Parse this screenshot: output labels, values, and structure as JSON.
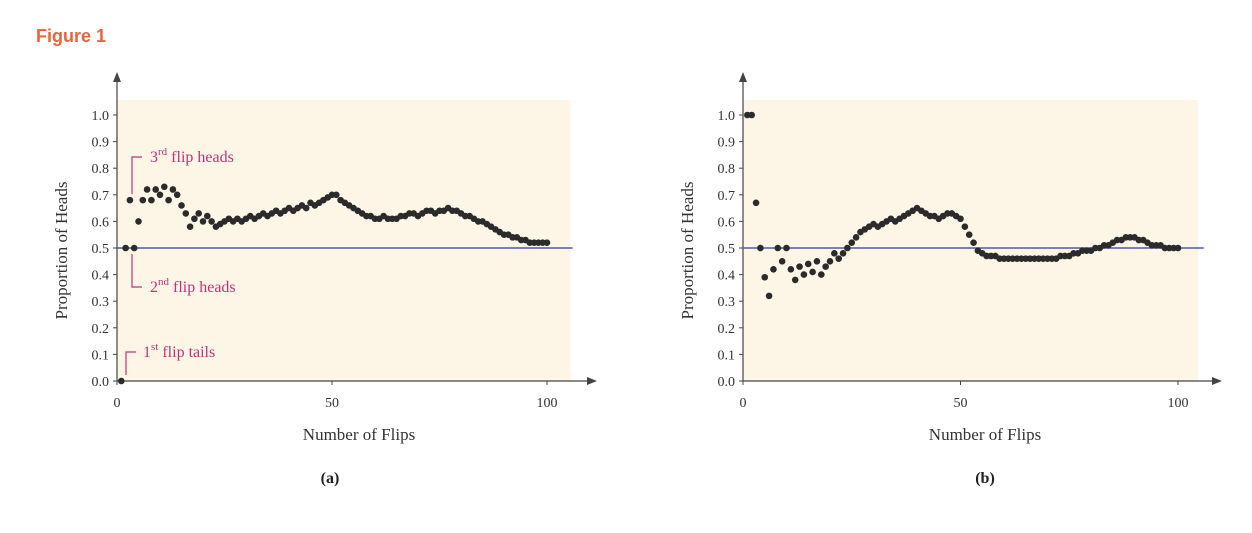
{
  "figure_label": "Figure 1",
  "chart_data": [
    {
      "type": "scatter",
      "panel_label": "(a)",
      "xlabel": "Number of Flips",
      "ylabel": "Proportion of Heads",
      "xlim": [
        0,
        105
      ],
      "ylim": [
        0,
        1.0
      ],
      "xticks": [
        "0",
        "50",
        "100"
      ],
      "yticks": [
        "0.0",
        "0.1",
        "0.2",
        "0.3",
        "0.4",
        "0.5",
        "0.6",
        "0.7",
        "0.8",
        "0.9",
        "1.0"
      ],
      "reference_line": 0.5,
      "colors": {
        "points": "#2b2b2b",
        "reference": "#4a5ab0",
        "background": "#fdf6e6",
        "annotation": "#c0327a"
      },
      "annotations": [
        {
          "text": "3",
          "sup": "rd",
          "rest": " flip heads",
          "x": 3,
          "y": 0.68
        },
        {
          "text": "2",
          "sup": "nd",
          "rest": " flip heads",
          "x": 2,
          "y": 0.5
        },
        {
          "text": "1",
          "sup": "st",
          "rest": " flip tails",
          "x": 1,
          "y": 0.0
        }
      ],
      "series": [
        {
          "x": [
            1,
            2,
            3,
            4,
            5,
            6,
            7,
            8,
            9,
            10,
            11,
            12,
            13,
            14,
            15,
            16,
            17,
            18,
            19,
            20,
            21,
            22,
            23,
            24,
            25,
            26,
            27,
            28,
            29,
            30,
            31,
            32,
            33,
            34,
            35,
            36,
            37,
            38,
            39,
            40,
            41,
            42,
            43,
            44,
            45,
            46,
            47,
            48,
            49,
            50,
            51,
            52,
            53,
            54,
            55,
            56,
            57,
            58,
            59,
            60,
            61,
            62,
            63,
            64,
            65,
            66,
            67,
            68,
            69,
            70,
            71,
            72,
            73,
            74,
            75,
            76,
            77,
            78,
            79,
            80,
            81,
            82,
            83,
            84,
            85,
            86,
            87,
            88,
            89,
            90,
            91,
            92,
            93,
            94,
            95,
            96,
            97,
            98,
            99,
            100
          ],
          "y": [
            0.0,
            0.5,
            0.68,
            0.5,
            0.6,
            0.68,
            0.72,
            0.68,
            0.72,
            0.7,
            0.73,
            0.68,
            0.72,
            0.7,
            0.66,
            0.63,
            0.58,
            0.61,
            0.63,
            0.6,
            0.62,
            0.6,
            0.58,
            0.59,
            0.6,
            0.61,
            0.6,
            0.61,
            0.6,
            0.61,
            0.62,
            0.61,
            0.62,
            0.63,
            0.62,
            0.63,
            0.64,
            0.63,
            0.64,
            0.65,
            0.64,
            0.65,
            0.66,
            0.65,
            0.67,
            0.66,
            0.67,
            0.68,
            0.69,
            0.7,
            0.7,
            0.68,
            0.67,
            0.66,
            0.65,
            0.64,
            0.63,
            0.62,
            0.62,
            0.61,
            0.61,
            0.62,
            0.61,
            0.61,
            0.61,
            0.62,
            0.62,
            0.63,
            0.63,
            0.62,
            0.63,
            0.64,
            0.64,
            0.63,
            0.64,
            0.64,
            0.65,
            0.64,
            0.64,
            0.63,
            0.62,
            0.62,
            0.61,
            0.6,
            0.6,
            0.59,
            0.58,
            0.57,
            0.56,
            0.55,
            0.55,
            0.54,
            0.54,
            0.53,
            0.53,
            0.52,
            0.52,
            0.52,
            0.52,
            0.52
          ]
        }
      ]
    },
    {
      "type": "scatter",
      "panel_label": "(b)",
      "xlabel": "Number of Flips",
      "ylabel": "Proportion of Heads",
      "xlim": [
        0,
        105
      ],
      "ylim": [
        0,
        1.0
      ],
      "xticks": [
        "0",
        "50",
        "100"
      ],
      "yticks": [
        "0.0",
        "0.1",
        "0.2",
        "0.3",
        "0.4",
        "0.5",
        "0.6",
        "0.7",
        "0.8",
        "0.9",
        "1.0"
      ],
      "reference_line": 0.5,
      "colors": {
        "points": "#2b2b2b",
        "reference": "#4a5ab0",
        "background": "#fdf6e6"
      },
      "series": [
        {
          "x": [
            1,
            2,
            3,
            4,
            5,
            6,
            7,
            8,
            9,
            10,
            11,
            12,
            13,
            14,
            15,
            16,
            17,
            18,
            19,
            20,
            21,
            22,
            23,
            24,
            25,
            26,
            27,
            28,
            29,
            30,
            31,
            32,
            33,
            34,
            35,
            36,
            37,
            38,
            39,
            40,
            41,
            42,
            43,
            44,
            45,
            46,
            47,
            48,
            49,
            50,
            51,
            52,
            53,
            54,
            55,
            56,
            57,
            58,
            59,
            60,
            61,
            62,
            63,
            64,
            65,
            66,
            67,
            68,
            69,
            70,
            71,
            72,
            73,
            74,
            75,
            76,
            77,
            78,
            79,
            80,
            81,
            82,
            83,
            84,
            85,
            86,
            87,
            88,
            89,
            90,
            91,
            92,
            93,
            94,
            95,
            96,
            97,
            98,
            99,
            100
          ],
          "y": [
            1.0,
            1.0,
            0.67,
            0.5,
            0.39,
            0.32,
            0.42,
            0.5,
            0.45,
            0.5,
            0.42,
            0.38,
            0.43,
            0.4,
            0.44,
            0.41,
            0.45,
            0.4,
            0.43,
            0.45,
            0.48,
            0.46,
            0.48,
            0.5,
            0.52,
            0.54,
            0.56,
            0.57,
            0.58,
            0.59,
            0.58,
            0.59,
            0.6,
            0.61,
            0.6,
            0.61,
            0.62,
            0.63,
            0.64,
            0.65,
            0.64,
            0.63,
            0.62,
            0.62,
            0.61,
            0.62,
            0.63,
            0.63,
            0.62,
            0.61,
            0.58,
            0.55,
            0.52,
            0.49,
            0.48,
            0.47,
            0.47,
            0.47,
            0.46,
            0.46,
            0.46,
            0.46,
            0.46,
            0.46,
            0.46,
            0.46,
            0.46,
            0.46,
            0.46,
            0.46,
            0.46,
            0.46,
            0.47,
            0.47,
            0.47,
            0.48,
            0.48,
            0.49,
            0.49,
            0.49,
            0.5,
            0.5,
            0.51,
            0.51,
            0.52,
            0.53,
            0.53,
            0.54,
            0.54,
            0.54,
            0.53,
            0.53,
            0.52,
            0.51,
            0.51,
            0.51,
            0.5,
            0.5,
            0.5,
            0.5
          ]
        }
      ]
    }
  ]
}
